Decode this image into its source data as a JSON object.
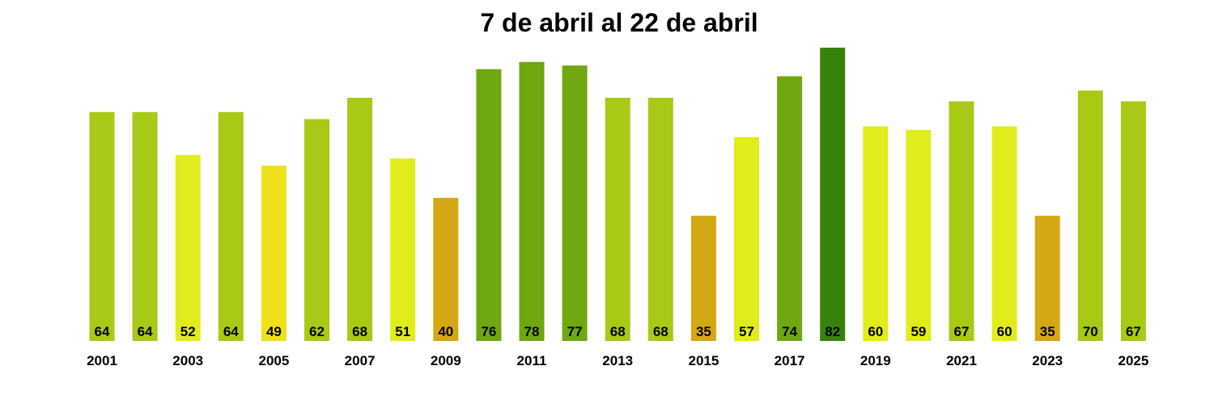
{
  "chart_data": {
    "type": "bar",
    "title": "7 de abril al 22 de abril",
    "xlabel": "",
    "ylabel": "",
    "categories": [
      "2001",
      "2002",
      "2003",
      "2004",
      "2005",
      "2006",
      "2007",
      "2008",
      "2009",
      "2010",
      "2011",
      "2012",
      "2013",
      "2014",
      "2015",
      "2016",
      "2017",
      "2018",
      "2019",
      "2020",
      "2021",
      "2022",
      "2023",
      "2024",
      "2025"
    ],
    "tick_labels": [
      "2001",
      "",
      "2003",
      "",
      "2005",
      "",
      "2007",
      "",
      "2009",
      "",
      "2011",
      "",
      "2013",
      "",
      "2015",
      "",
      "2017",
      "",
      "2019",
      "",
      "2021",
      "",
      "2023",
      "",
      "2025"
    ],
    "values": [
      64,
      64,
      52,
      64,
      49,
      62,
      68,
      51,
      40,
      76,
      78,
      77,
      68,
      68,
      35,
      57,
      74,
      82,
      60,
      59,
      67,
      60,
      35,
      70,
      67
    ],
    "value_labels": [
      "64",
      "64",
      "52",
      "64",
      "49",
      "62",
      "68",
      "51",
      "40",
      "76",
      "78",
      "77",
      "68",
      "68",
      "35",
      "57",
      "74",
      "82",
      "60",
      "59",
      "67",
      "60",
      "35",
      "70",
      "67"
    ],
    "colors": [
      "#a8c916",
      "#a8c916",
      "#e0ec1c",
      "#a8c916",
      "#f0e01a",
      "#a8c916",
      "#a8c916",
      "#e0ec1c",
      "#d4a814",
      "#6ea80e",
      "#6ea80e",
      "#6ea80e",
      "#a8c916",
      "#a8c916",
      "#d4a814",
      "#e0ec1c",
      "#6ea80e",
      "#358409",
      "#e0ec1c",
      "#e0ec1c",
      "#a8c916",
      "#e0ec1c",
      "#d4a814",
      "#a8c916",
      "#a8c916"
    ],
    "ylim": [
      0,
      82
    ],
    "grid": false,
    "legend": "none"
  }
}
